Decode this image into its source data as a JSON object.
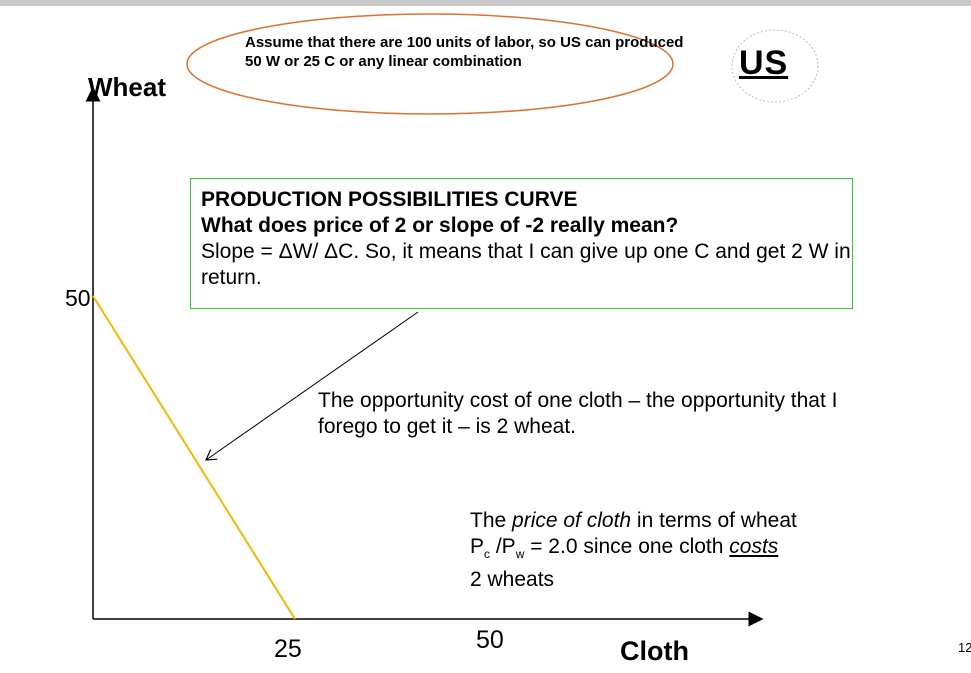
{
  "header": {
    "assumption_note": "Assume that there are 100 units of labor, so US can produced 50 W or  25 C or any linear combination",
    "country_label": "US"
  },
  "axes": {
    "y_label": "Wheat",
    "x_label": "Cloth",
    "y_tick": "50",
    "x_tick_1": "25",
    "x_tick_2": "50"
  },
  "ppc_box": {
    "heading": "PRODUCTION POSSIBILITIES CURVE",
    "question": "What does price of  2 or slope of -2 really mean?",
    "explanation": "Slope = ΔW/ ΔC.  So, it means that I can give up one C and get 2 W in return."
  },
  "opportunity_cost_text": "The opportunity cost of one cloth – the opportunity that I forego to get it – is 2 wheat.",
  "price_text": {
    "intro": "The ",
    "price_italic": "price of cloth",
    "rest_line1": " in terms of wheat",
    "p": "P",
    "sub_c": "c",
    "slash_p": " /P",
    "sub_w": "w",
    "eq": " = 2.0 since one cloth ",
    "costs": "costs",
    "line3": "2 wheats"
  },
  "slide_number": "12",
  "colors": {
    "ppc_line": "#f5b800",
    "ellipse_border": "#e07030",
    "box_border": "#39c839",
    "axis": "#000000"
  }
}
